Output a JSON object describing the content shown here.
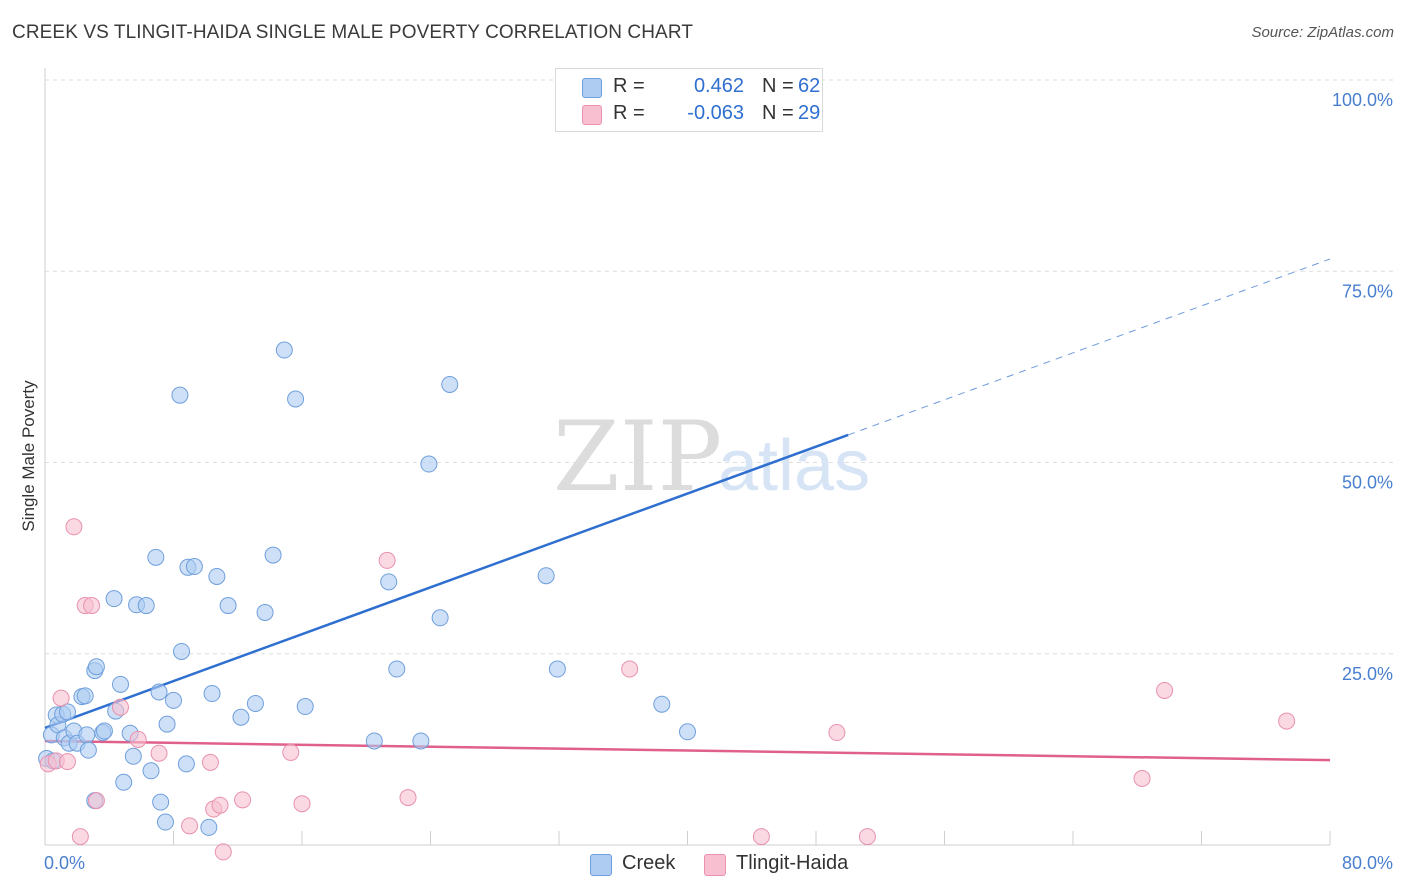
{
  "title": "CREEK VS TLINGIT-HAIDA SINGLE MALE POVERTY CORRELATION CHART",
  "source": "Source: ZipAtlas.com",
  "watermark": {
    "zip": "ZIP",
    "atlas": "atlas"
  },
  "legend": {
    "rows": [
      {
        "r_label": "R =",
        "r_value": "0.462",
        "n_label": "N =",
        "n_value": "62"
      },
      {
        "r_label": "R =",
        "r_value": "-0.063",
        "n_label": "N =",
        "n_value": "29"
      }
    ]
  },
  "bottom_legend": {
    "creek": "Creek",
    "tlingit": "Tlingit-Haida"
  },
  "colors": {
    "creek_fill": "#aecbf2",
    "creek_stroke": "#6f9fdc",
    "creek_line": "#2f6fd0",
    "tlingit_fill": "#f7bfd0",
    "tlingit_stroke": "#e991ae",
    "tlingit_line": "#e0608c",
    "axis_label": "#4a7fcf",
    "grid": "#dedede"
  },
  "chart_data": {
    "type": "scatter",
    "title": "CREEK VS TLINGIT-HAIDA SINGLE MALE POVERTY CORRELATION CHART",
    "xlabel": "",
    "ylabel": "Single Male Poverty",
    "xlim": [
      0,
      80
    ],
    "ylim": [
      0,
      100
    ],
    "x_tick_labels": [
      "0.0%",
      "80.0%"
    ],
    "y_tick_labels": [
      "100.0%",
      "75.0%",
      "50.0%",
      "25.0%"
    ],
    "y_ticks": [
      100,
      75,
      50,
      25
    ],
    "legend_position": "top-center",
    "grid": true,
    "series": [
      {
        "name": "Creek",
        "R": 0.462,
        "N": 62,
        "trend": {
          "x0": 0,
          "y0": 15.3,
          "x1": 50,
          "y1": 53.6,
          "dashed_to_x": 80,
          "dashed_to_y": 76.6
        },
        "points": [
          [
            0.1,
            11.3
          ],
          [
            0.4,
            14.4
          ],
          [
            0.5,
            11.0
          ],
          [
            0.7,
            17.0
          ],
          [
            0.8,
            15.7
          ],
          [
            1.1,
            17.1
          ],
          [
            1.2,
            14.0
          ],
          [
            1.4,
            17.4
          ],
          [
            1.5,
            13.3
          ],
          [
            1.8,
            14.9
          ],
          [
            2.0,
            13.3
          ],
          [
            2.3,
            19.4
          ],
          [
            2.5,
            19.5
          ],
          [
            2.6,
            14.4
          ],
          [
            2.7,
            12.4
          ],
          [
            3.1,
            22.8
          ],
          [
            3.1,
            5.8
          ],
          [
            3.2,
            23.3
          ],
          [
            3.6,
            14.7
          ],
          [
            3.7,
            14.9
          ],
          [
            4.3,
            32.2
          ],
          [
            4.4,
            17.5
          ],
          [
            4.7,
            21.0
          ],
          [
            4.9,
            8.2
          ],
          [
            5.3,
            14.6
          ],
          [
            5.5,
            11.6
          ],
          [
            5.7,
            31.4
          ],
          [
            6.3,
            31.3
          ],
          [
            6.6,
            9.7
          ],
          [
            6.9,
            37.6
          ],
          [
            7.1,
            20.0
          ],
          [
            7.2,
            5.6
          ],
          [
            7.5,
            3.0
          ],
          [
            7.6,
            15.8
          ],
          [
            8.0,
            18.9
          ],
          [
            8.4,
            58.8
          ],
          [
            8.5,
            25.3
          ],
          [
            8.8,
            10.6
          ],
          [
            8.9,
            36.3
          ],
          [
            9.3,
            36.4
          ],
          [
            10.2,
            2.3
          ],
          [
            10.4,
            19.8
          ],
          [
            10.7,
            35.1
          ],
          [
            11.4,
            31.3
          ],
          [
            12.2,
            16.7
          ],
          [
            13.1,
            18.5
          ],
          [
            13.7,
            30.4
          ],
          [
            14.2,
            37.9
          ],
          [
            14.9,
            64.7
          ],
          [
            15.6,
            58.3
          ],
          [
            16.2,
            18.1
          ],
          [
            20.5,
            13.6
          ],
          [
            21.4,
            34.4
          ],
          [
            21.9,
            23.0
          ],
          [
            23.4,
            13.6
          ],
          [
            23.9,
            49.8
          ],
          [
            24.6,
            29.7
          ],
          [
            25.2,
            60.2
          ],
          [
            31.2,
            35.2
          ],
          [
            31.9,
            23.0
          ],
          [
            38.4,
            18.4
          ],
          [
            40.0,
            14.8
          ]
        ]
      },
      {
        "name": "Tlingit-Haida",
        "R": -0.063,
        "N": 29,
        "trend": {
          "x0": 0,
          "y0": 13.6,
          "x1": 80,
          "y1": 11.1
        },
        "points": [
          [
            0.2,
            10.6
          ],
          [
            0.7,
            11.0
          ],
          [
            1.0,
            19.2
          ],
          [
            1.4,
            10.9
          ],
          [
            1.8,
            41.6
          ],
          [
            2.2,
            1.1
          ],
          [
            2.5,
            31.3
          ],
          [
            2.9,
            31.3
          ],
          [
            3.2,
            5.8
          ],
          [
            4.7,
            18.0
          ],
          [
            5.8,
            13.8
          ],
          [
            7.1,
            12.0
          ],
          [
            9.0,
            2.5
          ],
          [
            10.3,
            10.8
          ],
          [
            10.5,
            4.7
          ],
          [
            10.9,
            5.2
          ],
          [
            11.1,
            -0.9
          ],
          [
            12.3,
            5.9
          ],
          [
            15.3,
            12.1
          ],
          [
            16.0,
            5.4
          ],
          [
            21.3,
            37.2
          ],
          [
            22.6,
            6.2
          ],
          [
            36.4,
            23.0
          ],
          [
            44.6,
            1.1
          ],
          [
            49.3,
            14.7
          ],
          [
            51.2,
            1.1
          ],
          [
            68.3,
            8.7
          ],
          [
            69.7,
            20.2
          ],
          [
            77.3,
            16.2
          ]
        ]
      }
    ]
  }
}
